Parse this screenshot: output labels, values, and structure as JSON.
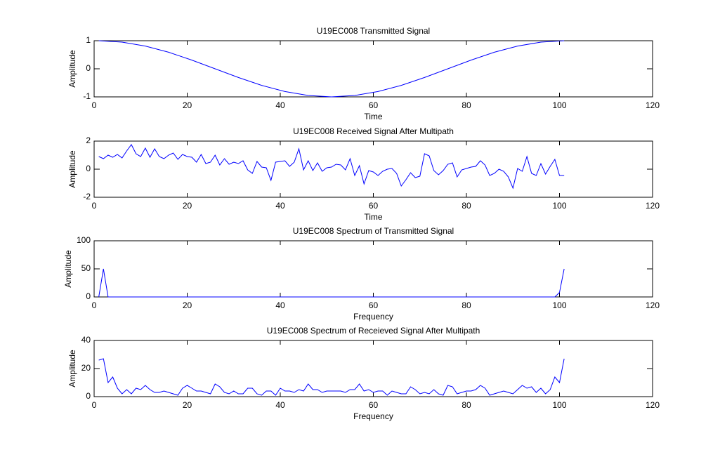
{
  "chart_data": [
    {
      "type": "line",
      "title": "U19EC008 Transmitted Signal",
      "xlabel": "Time",
      "ylabel": "Amplitude",
      "color": "#0000ff",
      "xlim": [
        0,
        120
      ],
      "ylim": [
        -1,
        1
      ],
      "xticks": [
        0,
        20,
        40,
        60,
        80,
        100,
        120
      ],
      "yticks": [
        -1,
        0,
        1
      ],
      "x": [
        1,
        6,
        11,
        16,
        21,
        26,
        31,
        36,
        41,
        46,
        51,
        56,
        61,
        66,
        71,
        76,
        81,
        86,
        91,
        96,
        101
      ],
      "values": [
        1,
        0.95,
        0.81,
        0.59,
        0.31,
        0,
        -0.31,
        -0.59,
        -0.81,
        -0.95,
        -1,
        -0.95,
        -0.81,
        -0.59,
        -0.31,
        0,
        0.31,
        0.59,
        0.81,
        0.95,
        1
      ]
    },
    {
      "type": "line",
      "title": "U19EC008 Received Signal After Multipath",
      "xlabel": "Time",
      "ylabel": "Amplitude",
      "color": "#0000ff",
      "xlim": [
        0,
        120
      ],
      "ylim": [
        -2,
        2
      ],
      "xticks": [
        0,
        20,
        40,
        60,
        80,
        100,
        120
      ],
      "yticks": [
        -2,
        0,
        2
      ],
      "x": [
        1,
        2,
        3,
        4,
        5,
        6,
        7,
        8,
        9,
        10,
        11,
        12,
        13,
        14,
        15,
        16,
        17,
        18,
        19,
        20,
        21,
        22,
        23,
        24,
        25,
        26,
        27,
        28,
        29,
        30,
        31,
        32,
        33,
        34,
        35,
        36,
        37,
        38,
        39,
        40,
        41,
        42,
        43,
        44,
        45,
        46,
        47,
        48,
        49,
        50,
        51,
        52,
        53,
        54,
        55,
        56,
        57,
        58,
        59,
        60,
        61,
        62,
        63,
        64,
        65,
        66,
        67,
        68,
        69,
        70,
        71,
        72,
        73,
        74,
        75,
        76,
        77,
        78,
        79,
        80,
        81,
        82,
        83,
        84,
        85,
        86,
        87,
        88,
        89,
        90,
        91,
        92,
        93,
        94,
        95,
        96,
        97,
        98,
        99,
        100,
        101
      ],
      "values": [
        0.9,
        0.75,
        1.0,
        0.85,
        1.05,
        0.8,
        1.3,
        1.75,
        1.1,
        0.9,
        1.5,
        0.85,
        1.45,
        0.9,
        0.75,
        1.0,
        1.15,
        0.7,
        1.05,
        0.9,
        0.85,
        0.5,
        1.05,
        0.4,
        0.5,
        1.0,
        0.3,
        0.75,
        0.35,
        0.5,
        0.4,
        0.6,
        -0.05,
        -0.3,
        0.55,
        0.15,
        0.1,
        -0.8,
        0.5,
        0.55,
        0.6,
        0.2,
        0.5,
        1.45,
        -0.05,
        0.6,
        -0.1,
        0.45,
        -0.15,
        0.1,
        0.15,
        0.35,
        0.3,
        -0.05,
        0.75,
        -0.45,
        0.25,
        -1.05,
        -0.1,
        -0.2,
        -0.45,
        -0.15,
        0.0,
        0.05,
        -0.3,
        -1.2,
        -0.75,
        -0.25,
        -0.6,
        -0.5,
        1.1,
        0.95,
        -0.1,
        -0.4,
        -0.1,
        0.35,
        0.45,
        -0.55,
        -0.05,
        0.05,
        0.15,
        0.2,
        0.6,
        0.3,
        -0.45,
        -0.3,
        0.0,
        -0.15,
        -0.55,
        -1.35,
        0.05,
        -0.15,
        0.9,
        -0.3,
        -0.45,
        0.4,
        -0.35,
        0.2,
        0.7,
        -0.45,
        -0.45
      ]
    },
    {
      "type": "line",
      "title": "U19EC008 Spectrum of Transmitted Signal",
      "xlabel": "Frequency",
      "ylabel": "Amplitude",
      "color": "#0000ff",
      "xlim": [
        0,
        120
      ],
      "ylim": [
        0,
        100
      ],
      "xticks": [
        0,
        20,
        40,
        60,
        80,
        100,
        120
      ],
      "yticks": [
        0,
        50,
        100
      ],
      "x": [
        1,
        2,
        3,
        99,
        100,
        101
      ],
      "values": [
        0,
        50,
        0,
        0,
        8,
        50
      ]
    },
    {
      "type": "line",
      "title": "U19EC008 Spectrum of Receieved Signal After Multipath",
      "xlabel": "Frequency",
      "ylabel": "Amplitude",
      "color": "#0000ff",
      "xlim": [
        0,
        120
      ],
      "ylim": [
        0,
        40
      ],
      "xticks": [
        0,
        20,
        40,
        60,
        80,
        100,
        120
      ],
      "yticks": [
        0,
        20,
        40
      ],
      "x": [
        1,
        2,
        3,
        4,
        5,
        6,
        7,
        8,
        9,
        10,
        11,
        12,
        13,
        14,
        15,
        16,
        17,
        18,
        19,
        20,
        21,
        22,
        23,
        24,
        25,
        26,
        27,
        28,
        29,
        30,
        31,
        32,
        33,
        34,
        35,
        36,
        37,
        38,
        39,
        40,
        41,
        42,
        43,
        44,
        45,
        46,
        47,
        48,
        49,
        50,
        51,
        52,
        53,
        54,
        55,
        56,
        57,
        58,
        59,
        60,
        61,
        62,
        63,
        64,
        65,
        66,
        67,
        68,
        69,
        70,
        71,
        72,
        73,
        74,
        75,
        76,
        77,
        78,
        79,
        80,
        81,
        82,
        83,
        84,
        85,
        86,
        87,
        88,
        89,
        90,
        91,
        92,
        93,
        94,
        95,
        96,
        97,
        98,
        99,
        100,
        101
      ],
      "values": [
        26,
        27,
        10,
        14,
        6,
        2,
        5,
        2,
        6,
        5,
        8,
        5,
        3,
        3,
        4,
        3,
        2,
        1,
        6,
        8,
        6,
        4,
        4,
        3,
        2,
        9,
        7,
        3,
        2,
        4,
        2,
        2,
        6,
        6,
        2,
        1,
        4,
        4,
        1,
        6,
        4,
        4,
        3,
        5,
        4,
        9,
        5,
        5,
        3,
        4,
        4,
        4,
        4,
        3,
        5,
        5,
        9,
        4,
        5,
        3,
        4,
        4,
        1,
        4,
        3,
        2,
        2,
        7,
        5,
        2,
        3,
        2,
        5,
        2,
        1,
        8,
        7,
        2,
        3,
        4,
        4,
        5,
        8,
        6,
        1,
        2,
        3,
        4,
        3,
        2,
        5,
        8,
        6,
        7,
        3,
        6,
        2,
        5,
        14,
        10,
        27
      ]
    }
  ]
}
